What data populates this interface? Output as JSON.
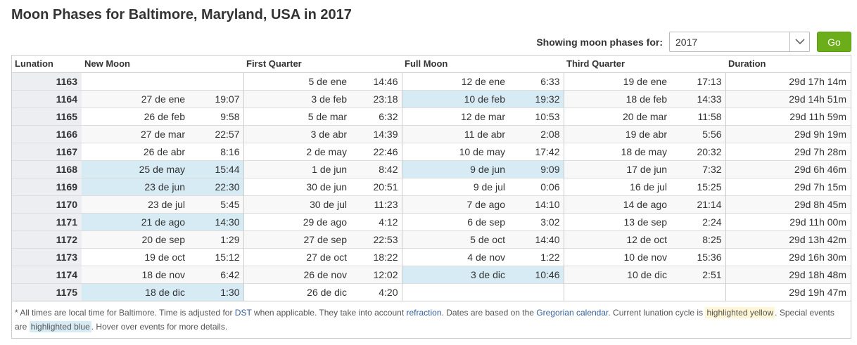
{
  "title": "Moon Phases for Baltimore, Maryland, USA in 2017",
  "controls": {
    "label": "Showing moon phases for:",
    "year": "2017",
    "go_label": "Go"
  },
  "table": {
    "headers": [
      "Lunation",
      "New Moon",
      "First Quarter",
      "Full Moon",
      "Third Quarter",
      "Duration"
    ],
    "rows": [
      {
        "lun": "1163",
        "nm_d": "",
        "nm_t": "",
        "fq_d": "5 de ene",
        "fq_t": "14:46",
        "fm_d": "12 de ene",
        "fm_t": "6:33",
        "tq_d": "19 de ene",
        "tq_t": "17:13",
        "dur": "29d 17h 14m",
        "hl": []
      },
      {
        "lun": "1164",
        "nm_d": "27 de ene",
        "nm_t": "19:07",
        "fq_d": "3 de feb",
        "fq_t": "23:18",
        "fm_d": "10 de feb",
        "fm_t": "19:32",
        "tq_d": "18 de feb",
        "tq_t": "14:33",
        "dur": "29d 14h 51m",
        "hl": [
          "fm"
        ]
      },
      {
        "lun": "1165",
        "nm_d": "26 de feb",
        "nm_t": "9:58",
        "fq_d": "5 de mar",
        "fq_t": "6:32",
        "fm_d": "12 de mar",
        "fm_t": "10:53",
        "tq_d": "20 de mar",
        "tq_t": "11:58",
        "dur": "29d 11h 59m",
        "hl": []
      },
      {
        "lun": "1166",
        "nm_d": "27 de mar",
        "nm_t": "22:57",
        "fq_d": "3 de abr",
        "fq_t": "14:39",
        "fm_d": "11 de abr",
        "fm_t": "2:08",
        "tq_d": "19 de abr",
        "tq_t": "5:56",
        "dur": "29d 9h 19m",
        "hl": []
      },
      {
        "lun": "1167",
        "nm_d": "26 de abr",
        "nm_t": "8:16",
        "fq_d": "2 de may",
        "fq_t": "22:46",
        "fm_d": "10 de may",
        "fm_t": "17:42",
        "tq_d": "18 de may",
        "tq_t": "20:32",
        "dur": "29d 7h 28m",
        "hl": []
      },
      {
        "lun": "1168",
        "nm_d": "25 de may",
        "nm_t": "15:44",
        "fq_d": "1 de jun",
        "fq_t": "8:42",
        "fm_d": "9 de jun",
        "fm_t": "9:09",
        "tq_d": "17 de jun",
        "tq_t": "7:32",
        "dur": "29d 6h 46m",
        "hl": [
          "nm",
          "fm"
        ]
      },
      {
        "lun": "1169",
        "nm_d": "23 de jun",
        "nm_t": "22:30",
        "fq_d": "30 de jun",
        "fq_t": "20:51",
        "fm_d": "9 de jul",
        "fm_t": "0:06",
        "tq_d": "16 de jul",
        "tq_t": "15:25",
        "dur": "29d 7h 15m",
        "hl": [
          "nm"
        ]
      },
      {
        "lun": "1170",
        "nm_d": "23 de jul",
        "nm_t": "5:45",
        "fq_d": "30 de jul",
        "fq_t": "11:23",
        "fm_d": "7 de ago",
        "fm_t": "14:10",
        "tq_d": "14 de ago",
        "tq_t": "21:14",
        "dur": "29d 8h 45m",
        "hl": []
      },
      {
        "lun": "1171",
        "nm_d": "21 de ago",
        "nm_t": "14:30",
        "fq_d": "29 de ago",
        "fq_t": "4:12",
        "fm_d": "6 de sep",
        "fm_t": "3:02",
        "tq_d": "13 de sep",
        "tq_t": "2:24",
        "dur": "29d 11h 00m",
        "hl": [
          "nm"
        ]
      },
      {
        "lun": "1172",
        "nm_d": "20 de sep",
        "nm_t": "1:29",
        "fq_d": "27 de sep",
        "fq_t": "22:53",
        "fm_d": "5 de oct",
        "fm_t": "14:40",
        "tq_d": "12 de oct",
        "tq_t": "8:25",
        "dur": "29d 13h 42m",
        "hl": []
      },
      {
        "lun": "1173",
        "nm_d": "19 de oct",
        "nm_t": "15:12",
        "fq_d": "27 de oct",
        "fq_t": "18:22",
        "fm_d": "4 de nov",
        "fm_t": "1:22",
        "tq_d": "10 de nov",
        "tq_t": "15:36",
        "dur": "29d 16h 30m",
        "hl": []
      },
      {
        "lun": "1174",
        "nm_d": "18 de nov",
        "nm_t": "6:42",
        "fq_d": "26 de nov",
        "fq_t": "12:02",
        "fm_d": "3 de dic",
        "fm_t": "10:46",
        "tq_d": "10 de dic",
        "tq_t": "2:51",
        "dur": "29d 18h 48m",
        "hl": [
          "fm"
        ]
      },
      {
        "lun": "1175",
        "nm_d": "18 de dic",
        "nm_t": "1:30",
        "fq_d": "26 de dic",
        "fq_t": "4:20",
        "fm_d": "",
        "fm_t": "",
        "tq_d": "",
        "tq_t": "",
        "dur": "29d 19h 47m",
        "hl": [
          "nm"
        ]
      }
    ]
  },
  "footnote": {
    "t1": "* All times are local time for Baltimore. Time is adjusted for ",
    "dst": "DST",
    "t2": " when applicable. They take into account ",
    "refraction": "refraction",
    "t3": ". Dates are based on the ",
    "gregorian": "Gregorian calendar",
    "t4": ". Current lunation cycle is ",
    "hl_yellow": "highlighted yellow",
    "t5": ". Special events are ",
    "hl_blue": "highlighted blue",
    "t6": ". Hover over events for more details."
  },
  "colors": {
    "go_button": "#6cae1a",
    "highlight_blue": "#d7ebf5",
    "highlight_yellow": "#fff6d5",
    "link": "#33609a"
  }
}
